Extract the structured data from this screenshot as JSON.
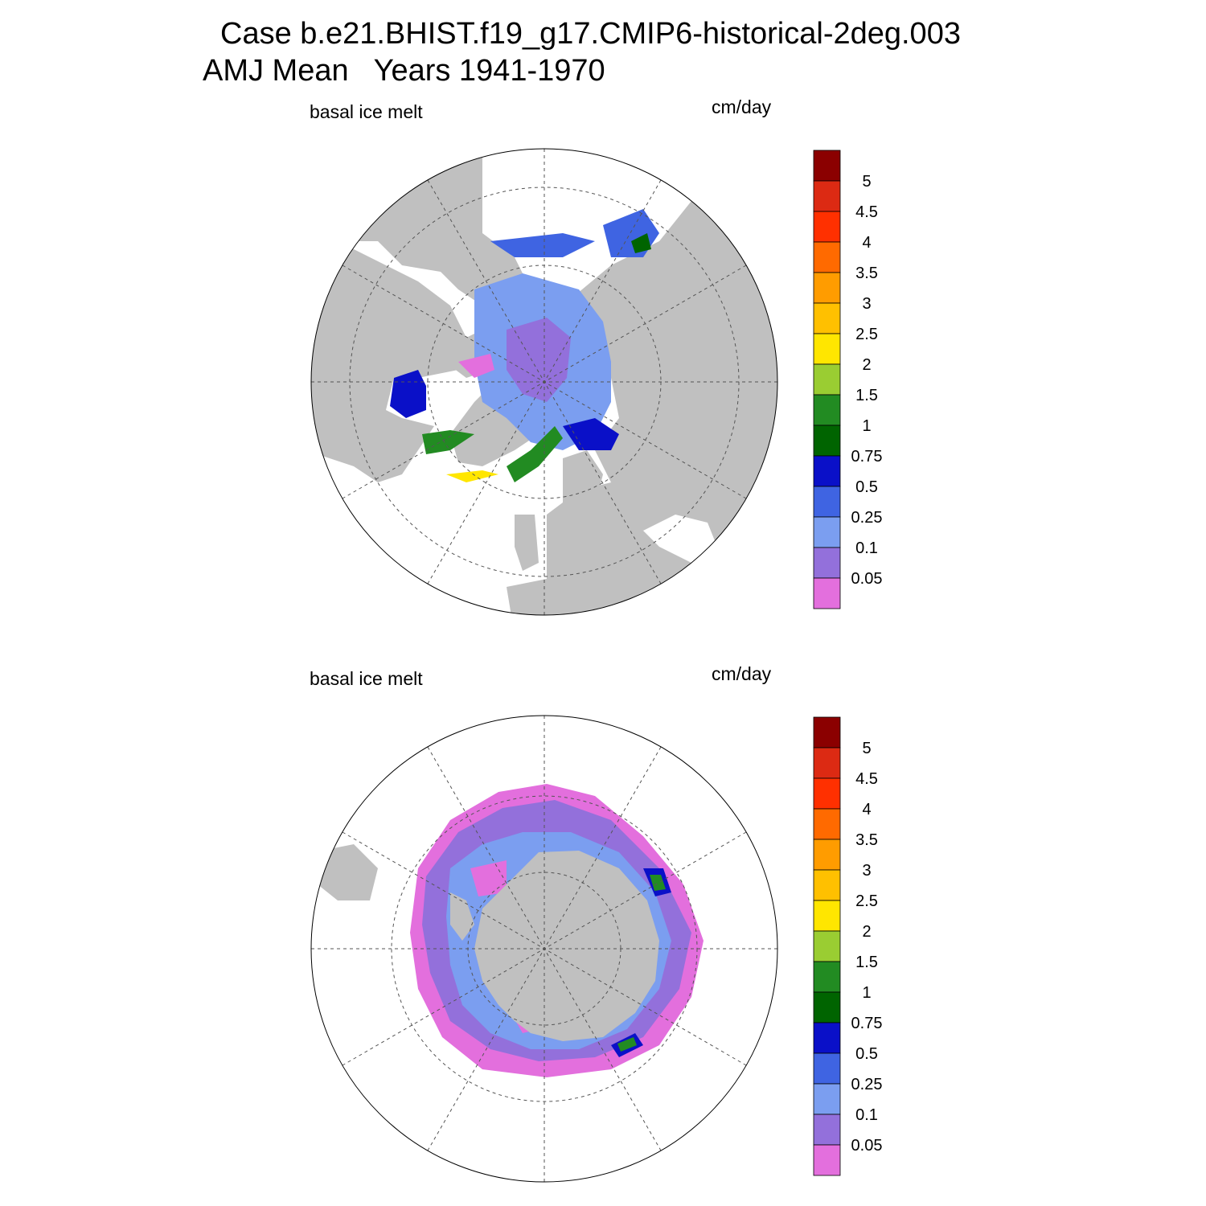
{
  "title": {
    "line1": "Case b.e21.BHIST.f19_g17.CMIP6-historical-2deg.003",
    "line2": "AMJ Mean   Years 1941-1970"
  },
  "panels": [
    {
      "id": "north",
      "left_label": "basal ice melt",
      "right_label": "cm/day"
    },
    {
      "id": "south",
      "left_label": "basal ice melt",
      "right_label": "cm/day"
    }
  ],
  "colorbar": {
    "colors": [
      "#e36fdd",
      "#9370db",
      "#7b9ef0",
      "#3f64e2",
      "#0a10c8",
      "#006400",
      "#228b22",
      "#9acd32",
      "#ffe600",
      "#ffc000",
      "#ff9c00",
      "#ff6a00",
      "#ff3000",
      "#dc2a13",
      "#8b0000"
    ],
    "labels": [
      "0.05",
      "0.1",
      "0.25",
      "0.5",
      "0.75",
      "1",
      "1.5",
      "2",
      "2.5",
      "3",
      "3.5",
      "4",
      "4.5",
      "5"
    ]
  },
  "map_colors": {
    "land": "#c0c0c0",
    "ocean": "#ffffff",
    "grid": "#555555"
  }
}
